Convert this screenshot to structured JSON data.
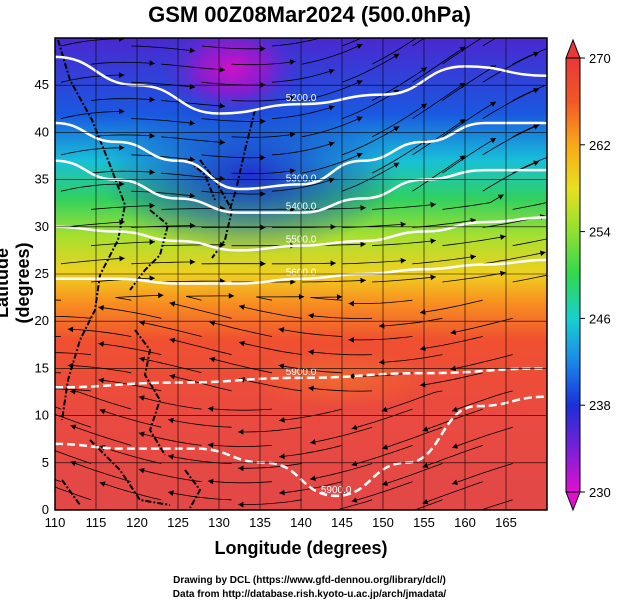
{
  "title": "GSM 00Z08Mar2024 (500.0hPa)",
  "xlabel": "Longitude (degrees)",
  "ylabel": "Latitude  (degrees)",
  "credits": [
    "Drawing by DCL (https://www.gfd-dennou.org/library/dcl/)",
    "Data from http://database.rish.kyoto-u.ac.jp/arch/jmadata/"
  ],
  "map": {
    "lon_range": [
      110,
      170
    ],
    "lat_range": [
      0,
      50
    ],
    "lon_ticks": [
      "110",
      "115",
      "120",
      "125",
      "130",
      "135",
      "140",
      "145",
      "150",
      "155",
      "160",
      "165"
    ],
    "lat_ticks": [
      "0",
      "5",
      "10",
      "15",
      "20",
      "25",
      "30",
      "35",
      "40",
      "45"
    ],
    "grid": true,
    "fill_variable": "temperature",
    "contour_variable": "geopotential height"
  },
  "colorbar": {
    "range": [
      230,
      270
    ],
    "tick_labels": [
      "230",
      "238",
      "246",
      "254",
      "262",
      "270"
    ],
    "colors": [
      "#e010d0",
      "#7a20d8",
      "#1a30d8",
      "#1a88e8",
      "#18d0d0",
      "#30d850",
      "#90e030",
      "#e8e020",
      "#f8a818",
      "#f05828",
      "#e83838"
    ]
  },
  "contours": [
    {
      "label": "5200.0",
      "lat": [
        48,
        45,
        42,
        43,
        44,
        47,
        46
      ]
    },
    {
      "label": "5300.0",
      "lat": [
        41,
        39,
        37,
        34,
        34.5,
        37,
        39,
        41,
        41
      ]
    },
    {
      "label": "5400.0",
      "lat": [
        37,
        35,
        33,
        31.5,
        31.5,
        33,
        35,
        36,
        36
      ]
    },
    {
      "label": "5500.0",
      "lat": [
        30,
        29.5,
        28.5,
        27.5,
        28,
        28.5,
        29.5,
        30.5,
        31
      ]
    },
    {
      "label": "5600.0",
      "lat": [
        24.5,
        24.5,
        24,
        24,
        24.5,
        25,
        25.5,
        26,
        26.5
      ]
    },
    {
      "label": "5900.0",
      "lat": [
        13,
        13.5,
        14,
        14.5,
        15
      ]
    },
    {
      "label": "5900.0",
      "lat": [
        7,
        6.5,
        6.5,
        5,
        1.5,
        5,
        11,
        12
      ]
    }
  ]
}
